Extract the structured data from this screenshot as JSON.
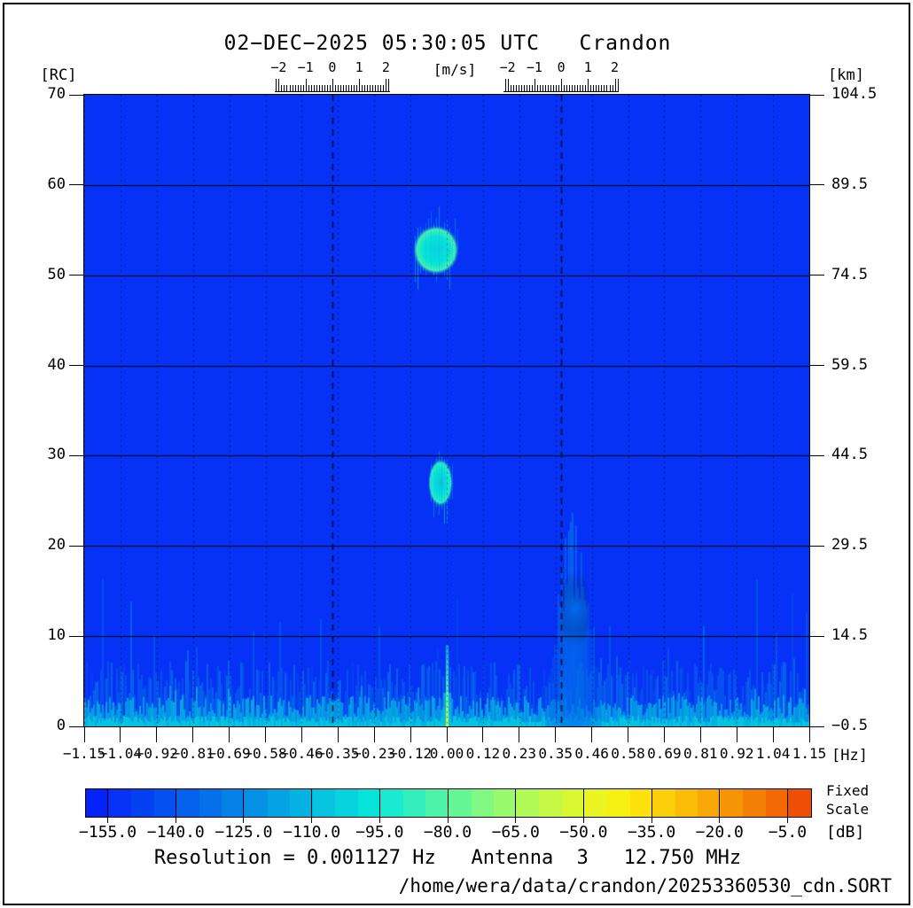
{
  "title": "02−DEC−2025 05:30:05 UTC   Crandon",
  "axes": {
    "left": {
      "unit": "[RC]",
      "ticks": [
        "70",
        "60",
        "50",
        "40",
        "30",
        "20",
        "10",
        "0"
      ]
    },
    "right": {
      "unit": "[km]",
      "ticks": [
        "104.5",
        "89.5",
        "74.5",
        "59.5",
        "44.5",
        "29.5",
        "14.5",
        "−0.5"
      ]
    },
    "bottom": {
      "unit": "[Hz]",
      "ticks": [
        "−1.15",
        "−1.04",
        "−0.92",
        "−0.81",
        "−0.69",
        "−0.58",
        "−0.46",
        "−0.35",
        "−0.23",
        "−0.12",
        "0.00",
        "0.12",
        "0.23",
        "0.35",
        "0.46",
        "0.58",
        "0.69",
        "0.81",
        "0.92",
        "1.04",
        "1.15"
      ]
    },
    "top_velocity": {
      "unit": "[m/s]",
      "tick_labels": [
        "−2",
        "−1",
        "0",
        "1",
        "2"
      ],
      "tick_values": [
        -2,
        -1,
        0,
        1,
        2
      ],
      "hz_per_m_s": 0.085
    }
  },
  "colorbar": {
    "labels": [
      "−155.0",
      "−140.0",
      "−125.0",
      "−110.0",
      "−95.0",
      "−80.0",
      "−65.0",
      "−50.0",
      "−35.0",
      "−20.0",
      "−5.0"
    ],
    "label_values": [
      -155,
      -140,
      -125,
      -110,
      -95,
      -80,
      -65,
      -50,
      -35,
      -20,
      -5
    ],
    "unit": "[dB]",
    "scale_note_line1": "Fixed",
    "scale_note_line2": "Scale",
    "min_db": -160,
    "max_db": 0,
    "step_db": 5,
    "colors": [
      "#0522f8",
      "#0532f4",
      "#0540f1",
      "#0550ee",
      "#0560ec",
      "#0570ea",
      "#0581e8",
      "#0591e6",
      "#05a2e4",
      "#06b2e2",
      "#06c3e0",
      "#07d3de",
      "#08e3da",
      "#19ead0",
      "#33efbd",
      "#4df3a9",
      "#66f695",
      "#80f881",
      "#99fa6d",
      "#b1fa58",
      "#c6f945",
      "#d9f833",
      "#eaf522",
      "#f7f013",
      "#fce10c",
      "#fbcf09",
      "#f9bc07",
      "#f7a806",
      "#f59405",
      "#f37f05",
      "#f16805",
      "#ee4e06"
    ]
  },
  "footer": {
    "resolution_line": "Resolution = 0.001127 Hz   Antenna  3   12.750 MHz",
    "file_path": "/home/wera/data/crandon/20253360530_cdn.SORT"
  },
  "chart_data": {
    "type": "heatmap",
    "title": "02−DEC−2025 05:30:05 UTC  Crandon",
    "x_axis": {
      "label": "[Hz]",
      "min": -1.15,
      "max": 1.15,
      "tick_step_hz": 0.115
    },
    "y_axis_left": {
      "label": "[RC]",
      "min": 0,
      "max": 70,
      "tick_step": 10
    },
    "y_axis_right": {
      "label": "[km]",
      "min": -0.5,
      "max": 104.5,
      "tick_step": 15
    },
    "velocity_axis": {
      "label": "[m/s]",
      "range": [
        -2,
        2
      ],
      "centered_on_bragg": true
    },
    "color_scale": {
      "label": "[dB]",
      "min": -160,
      "max": 0,
      "step": 5,
      "mode": "Fixed Scale"
    },
    "background_db": -155,
    "bragg_lines_hz": [
      -0.363,
      0.363
    ],
    "grid_rc_solid": [
      10,
      20,
      30,
      40,
      50,
      60
    ],
    "grid_hz_dotted_step": 0.115,
    "noise_floor": {
      "rc_max": 9,
      "db_range": [
        -146,
        -104
      ],
      "seed": 20253360530
    },
    "features": [
      {
        "name": "echo-blob-upper",
        "hz": -0.034,
        "rc": 52.8,
        "halfwidth_hz": 0.075,
        "halfheight_rc": 2.8,
        "peak_db": -104
      },
      {
        "name": "echo-blob-lower",
        "hz": -0.02,
        "rc": 27.0,
        "halfwidth_hz": 0.04,
        "halfheight_rc": 2.7,
        "peak_db": -108
      },
      {
        "name": "bragg-plume",
        "hz": 0.396,
        "rc_base": 1.5,
        "rc_top": 19.5,
        "halfwidth_hz": 0.05,
        "peak_db": -132
      },
      {
        "name": "dc-spike",
        "hz": 0.0,
        "rc_top": 9.0,
        "peak_db": -58
      }
    ]
  }
}
